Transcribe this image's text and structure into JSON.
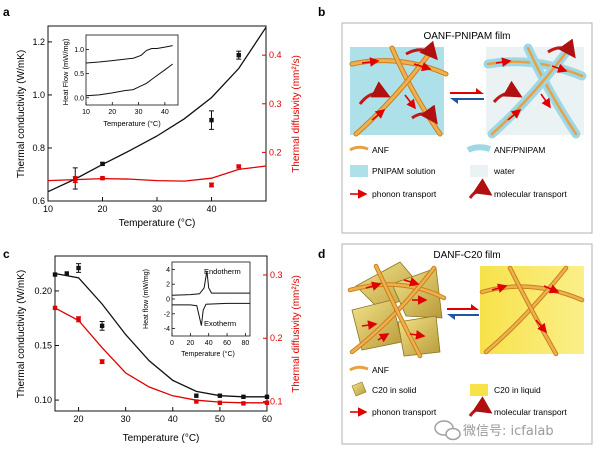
{
  "colors": {
    "black": "#111111",
    "red": "#e00000",
    "fiber": "#e8a040",
    "fiber_dark": "#c07010",
    "cyan": "#aee0ea",
    "cyan_fiber": "#8fd3e4",
    "yellow": "#f7e95e",
    "gold": "#d8c46a"
  },
  "panels": {
    "a": "a",
    "b": "b",
    "c": "c",
    "d": "d"
  },
  "schematic_b": {
    "title": "OANF-PNIPAM film",
    "legend": {
      "anf": "ANF",
      "anf_pnipam": "ANF/PNIPAM",
      "pnipam_solution": "PNIPAM solution",
      "water": "water",
      "phonon": "phonon transport",
      "molecular": "molecular  transport"
    }
  },
  "schematic_d": {
    "title": "DANF-C20 film",
    "legend": {
      "anf": "ANF",
      "c20_solid": "C20 in solid",
      "c20_liquid": "C20 in liquid",
      "phonon": "phonon transport",
      "molecular": "molecular  transport"
    }
  },
  "watermark": {
    "text": "微信号: icfalab",
    "icon": "wechat-icon"
  },
  "chart_data": [
    {
      "id": "a",
      "type": "scatter",
      "xlabel": "Temperature (°C)",
      "ylabel_left": "Thermal conductivity (W/mK)",
      "ylabel_right": "Thermal diffusivity  (mm²/s)",
      "xlim": [
        10,
        50
      ],
      "ylim_left": [
        0.6,
        1.26
      ],
      "ylim_right": [
        0.1,
        0.46
      ],
      "xticks": [
        "10",
        "20",
        "30",
        "40"
      ],
      "yticks_left": [
        "0.6",
        "0.8",
        "1.0",
        "1.2"
      ],
      "yticks_right": [
        "0.2",
        "0.3",
        "0.4"
      ],
      "series": [
        {
          "axis": "left",
          "color": "#111111",
          "points": [
            [
              15,
              0.685
            ],
            [
              20,
              0.74
            ],
            [
              40,
              0.905
            ],
            [
              45,
              1.15
            ]
          ],
          "errors": [
            0.04,
            0.005,
            0.035,
            0.015
          ]
        },
        {
          "axis": "right",
          "color": "#e00000",
          "points": [
            [
              15,
              0.144
            ],
            [
              20,
              0.147
            ],
            [
              40,
              0.133
            ],
            [
              45,
              0.171
            ]
          ],
          "errors": [
            0.006,
            0.002,
            0.004,
            0.003
          ]
        }
      ],
      "fit_left": [
        [
          10,
          0.635
        ],
        [
          15,
          0.683
        ],
        [
          20,
          0.738
        ],
        [
          25,
          0.79
        ],
        [
          30,
          0.845
        ],
        [
          35,
          0.91
        ],
        [
          40,
          0.99
        ],
        [
          45,
          1.1
        ],
        [
          50,
          1.255
        ]
      ],
      "fit_right": [
        [
          10,
          0.142
        ],
        [
          15,
          0.144
        ],
        [
          20,
          0.146
        ],
        [
          25,
          0.145
        ],
        [
          30,
          0.142
        ],
        [
          35,
          0.141
        ],
        [
          40,
          0.147
        ],
        [
          45,
          0.165
        ],
        [
          50,
          0.172
        ]
      ],
      "inset": {
        "xlabel": "Temperature (°C)",
        "ylabel": "Heat Flow (mW/mg)",
        "xlim": [
          10,
          45
        ],
        "ylim": [
          -0.15,
          1.3
        ],
        "xticks": [
          "10",
          "20",
          "30",
          "40"
        ],
        "yticks": [
          "0.0",
          "0.5",
          "1.0"
        ],
        "curve_upper": [
          [
            10,
            0.72
          ],
          [
            15,
            0.74
          ],
          [
            20,
            0.77
          ],
          [
            25,
            0.8
          ],
          [
            28,
            0.82
          ],
          [
            31,
            0.88
          ],
          [
            33,
            0.98
          ],
          [
            35,
            1.02
          ],
          [
            37,
            1.02
          ],
          [
            40,
            1.05
          ],
          [
            43,
            1.08
          ]
        ],
        "curve_lower": [
          [
            10,
            0.04
          ],
          [
            15,
            0.06
          ],
          [
            20,
            0.1
          ],
          [
            25,
            0.15
          ],
          [
            28,
            0.17
          ],
          [
            30,
            0.22
          ],
          [
            33,
            0.3
          ],
          [
            36,
            0.42
          ],
          [
            40,
            0.58
          ],
          [
            43,
            0.7
          ]
        ]
      }
    },
    {
      "id": "c",
      "type": "scatter",
      "xlabel": "Temperature (°C)",
      "ylabel_left": "Thermal conductivity (W/mK)",
      "ylabel_right": "Thermal diffusivity  (mm²/s)",
      "xlim": [
        15,
        60
      ],
      "ylim_left": [
        0.09,
        0.232
      ],
      "ylim_right": [
        0.085,
        0.33
      ],
      "xticks": [
        "20",
        "30",
        "40",
        "50",
        "60"
      ],
      "yticks_left": [
        "0.10",
        "0.15",
        "0.20"
      ],
      "yticks_right": [
        "0.1",
        "0.2",
        "0.3"
      ],
      "series": [
        {
          "axis": "left",
          "color": "#111111",
          "points": [
            [
              15,
              0.215
            ],
            [
              17.5,
              0.216
            ],
            [
              20,
              0.221
            ],
            [
              25,
              0.168
            ],
            [
              45,
              0.104
            ],
            [
              50,
              0.104
            ],
            [
              55,
              0.103
            ],
            [
              60,
              0.103
            ]
          ],
          "errors": [
            0,
            0,
            0.004,
            0.004,
            0,
            0,
            0,
            0
          ]
        },
        {
          "axis": "right",
          "color": "#e00000",
          "points": [
            [
              15,
              0.248
            ],
            [
              20,
              0.23
            ],
            [
              25,
              0.163
            ],
            [
              45,
              0.1
            ],
            [
              50,
              0.098
            ],
            [
              55,
              0.097
            ],
            [
              60,
              0.098
            ]
          ],
          "errors": [
            0,
            0.004,
            0.003,
            0,
            0,
            0,
            0
          ]
        }
      ],
      "fit_left": [
        [
          15,
          0.216
        ],
        [
          20,
          0.212
        ],
        [
          25,
          0.188
        ],
        [
          30,
          0.16
        ],
        [
          35,
          0.136
        ],
        [
          40,
          0.118
        ],
        [
          45,
          0.108
        ],
        [
          50,
          0.104
        ],
        [
          55,
          0.103
        ],
        [
          60,
          0.103
        ]
      ],
      "fit_right": [
        [
          15,
          0.248
        ],
        [
          20,
          0.228
        ],
        [
          25,
          0.185
        ],
        [
          30,
          0.145
        ],
        [
          35,
          0.123
        ],
        [
          40,
          0.109
        ],
        [
          45,
          0.102
        ],
        [
          50,
          0.099
        ],
        [
          55,
          0.098
        ],
        [
          60,
          0.098
        ]
      ],
      "inset": {
        "xlabel": "Temperature (°C)",
        "ylabel": "Heat flow (mW/mg)",
        "xlim": [
          0,
          85
        ],
        "ylim": [
          -5,
          5
        ],
        "xticks": [
          "0",
          "20",
          "40",
          "60",
          "80"
        ],
        "yticks": [
          "-4",
          "-2",
          "0",
          "2",
          "4"
        ],
        "annotations": [
          "Endotherm",
          "Exotherm"
        ],
        "curve_upper": [
          [
            0,
            0.5
          ],
          [
            20,
            0.6
          ],
          [
            30,
            0.7
          ],
          [
            35,
            1.5
          ],
          [
            38,
            3.8
          ],
          [
            40,
            1.5
          ],
          [
            43,
            0.8
          ],
          [
            60,
            0.8
          ],
          [
            85,
            0.8
          ]
        ],
        "curve_lower": [
          [
            0,
            -0.8
          ],
          [
            20,
            -0.8
          ],
          [
            27,
            -0.9
          ],
          [
            30,
            -2.5
          ],
          [
            32,
            -3.6
          ],
          [
            34,
            -1.5
          ],
          [
            37,
            -0.7
          ],
          [
            60,
            -0.6
          ],
          [
            85,
            -0.6
          ]
        ]
      }
    }
  ]
}
